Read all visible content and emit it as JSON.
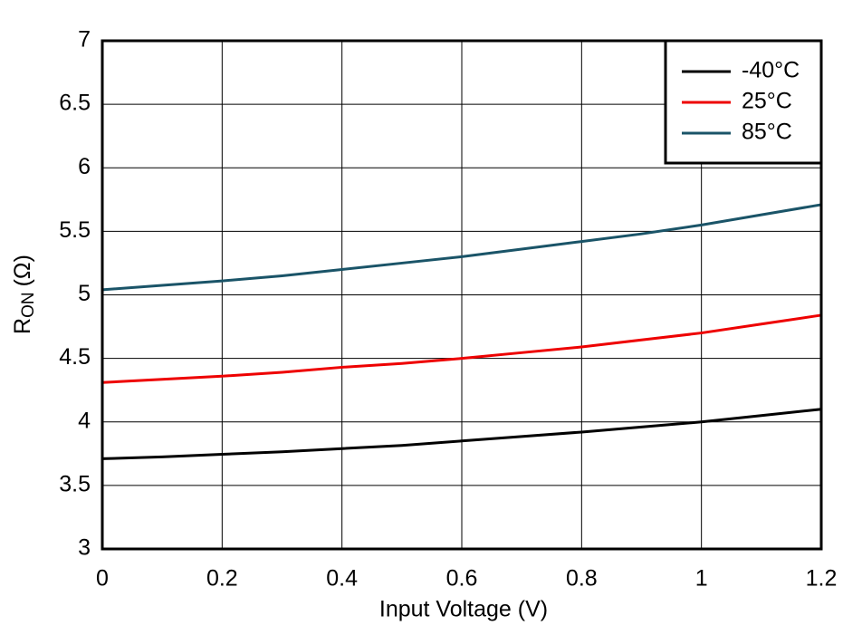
{
  "chart_data": {
    "type": "line",
    "x_label": "Input Voltage (V)",
    "y_label": {
      "symbol": "R",
      "subscript": "ON",
      "unit": "(Ω)"
    },
    "x": [
      0,
      0.1,
      0.2,
      0.3,
      0.4,
      0.5,
      0.6,
      0.7,
      0.8,
      0.9,
      1.0,
      1.1,
      1.2
    ],
    "series": [
      {
        "name": "-40°C",
        "color": "#000000",
        "values": [
          3.71,
          3.725,
          3.745,
          3.765,
          3.79,
          3.815,
          3.85,
          3.885,
          3.92,
          3.96,
          4.0,
          4.05,
          4.1
        ]
      },
      {
        "name": "25°C",
        "color": "#ee0000",
        "values": [
          4.31,
          4.335,
          4.36,
          4.39,
          4.43,
          4.46,
          4.5,
          4.545,
          4.59,
          4.645,
          4.7,
          4.77,
          4.84
        ]
      },
      {
        "name": "85°C",
        "color": "#1a5468",
        "values": [
          5.04,
          5.075,
          5.11,
          5.15,
          5.2,
          5.25,
          5.3,
          5.36,
          5.42,
          5.48,
          5.55,
          5.63,
          5.71
        ]
      }
    ],
    "xlim": [
      0,
      1.2
    ],
    "xticks": [
      0,
      0.2,
      0.4,
      0.6,
      0.8,
      1,
      1.2
    ],
    "ylim": [
      3,
      7
    ],
    "yticks": [
      3,
      3.5,
      4,
      4.5,
      5,
      5.5,
      6,
      6.5,
      7
    ],
    "grid": true,
    "legend": "top-right"
  }
}
